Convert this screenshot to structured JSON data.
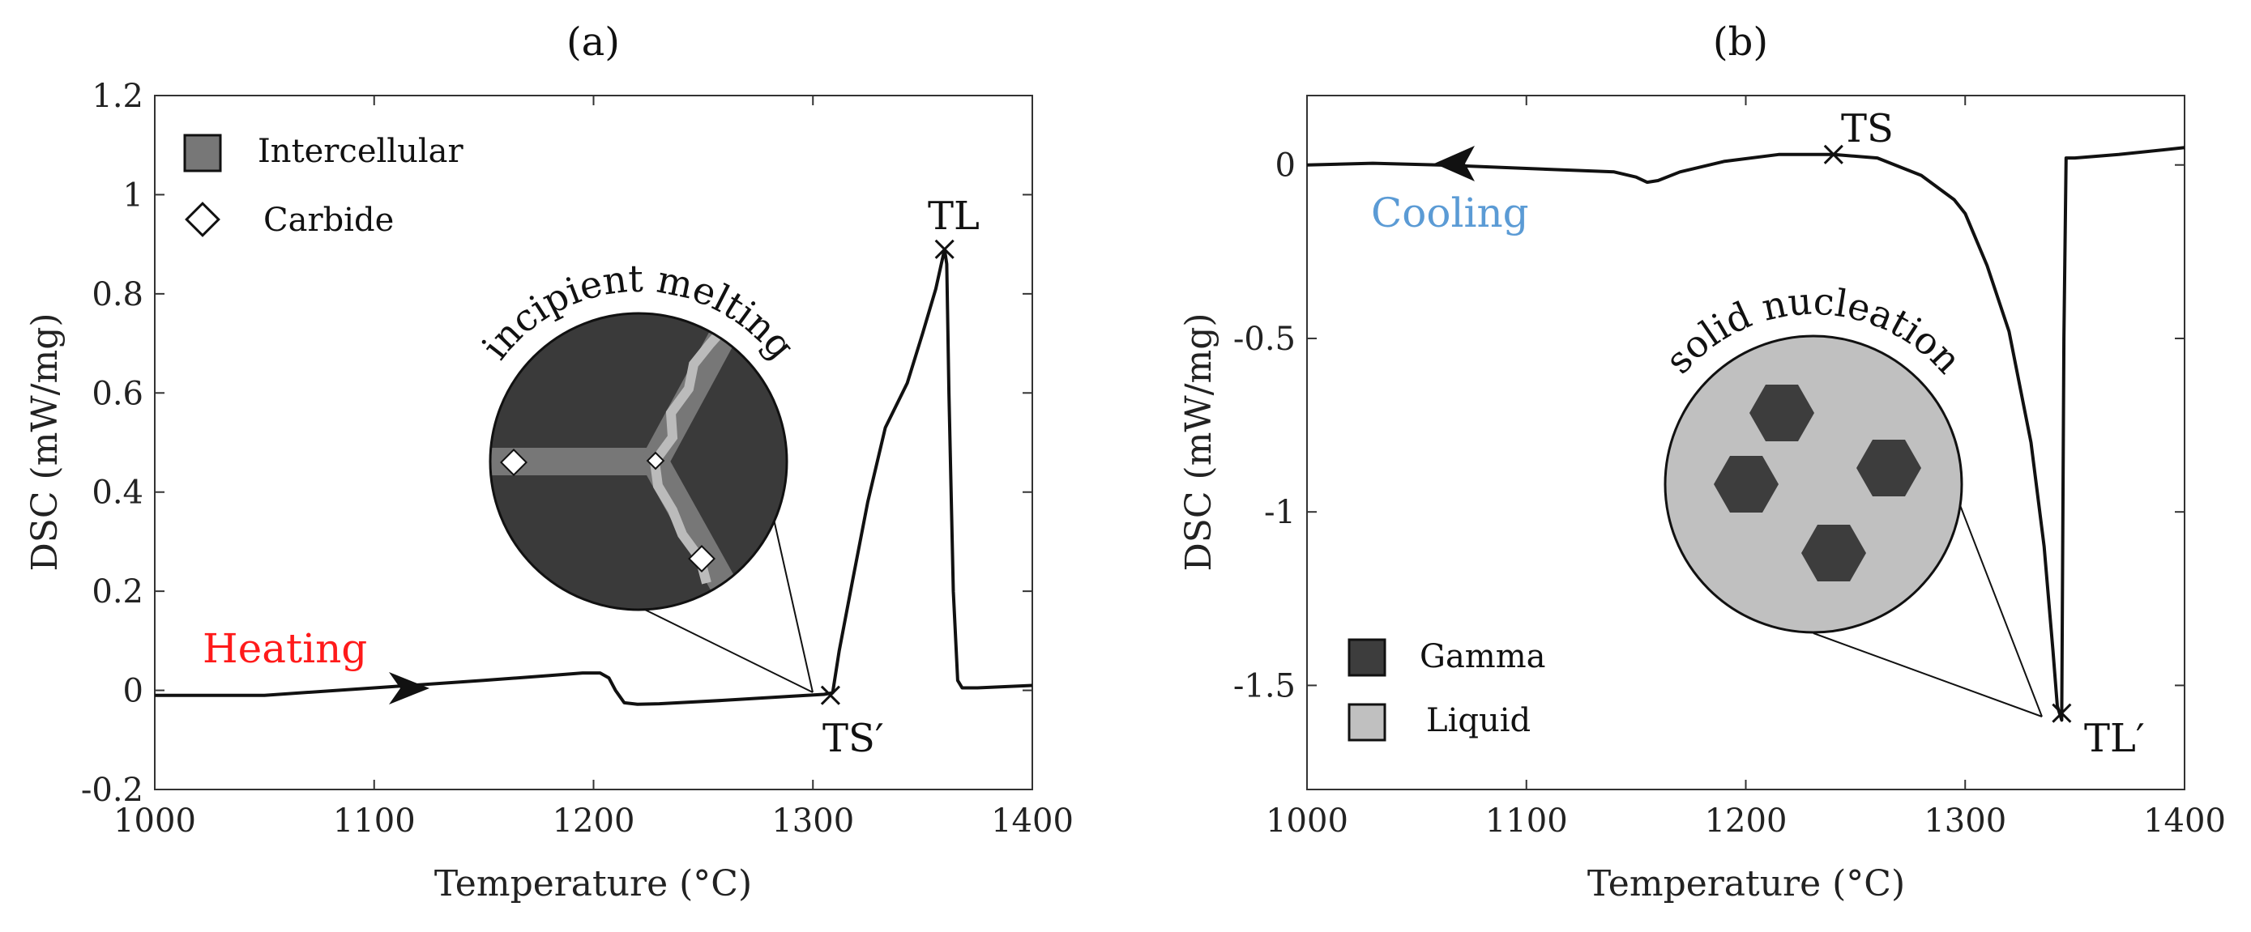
{
  "chart_data": [
    {
      "type": "line",
      "title": "(a)",
      "xlabel": "Temperature (°C)",
      "ylabel": "DSC (mW/mg)",
      "xlim": [
        1000,
        1400
      ],
      "ylim": [
        -0.2,
        1.2
      ],
      "xticks": [
        "1000",
        "1100",
        "1200",
        "1300",
        "1400"
      ],
      "yticks": [
        "-0.2",
        "0",
        "0.2",
        "0.4",
        "0.6",
        "0.8",
        "1",
        "1.2"
      ],
      "series": [
        {
          "name": "Heating",
          "x": [
            1000,
            1050,
            1100,
            1150,
            1180,
            1195,
            1203,
            1207,
            1210,
            1214,
            1220,
            1230,
            1260,
            1290,
            1305,
            1309,
            1312,
            1318,
            1325,
            1333,
            1343,
            1350,
            1356,
            1360,
            1361,
            1362,
            1364,
            1366,
            1368,
            1375,
            1400
          ],
          "y": [
            -0.01,
            -0.01,
            0.005,
            0.02,
            0.03,
            0.035,
            0.035,
            0.025,
            0.0,
            -0.025,
            -0.028,
            -0.027,
            -0.02,
            -0.012,
            -0.008,
            -0.005,
            0.08,
            0.22,
            0.38,
            0.53,
            0.62,
            0.72,
            0.81,
            0.89,
            0.86,
            0.6,
            0.2,
            0.02,
            0.005,
            0.005,
            0.01
          ]
        }
      ],
      "annotations": {
        "heating_label": "Heating",
        "heating_color": "#ff1a1a",
        "peak_label": "TL",
        "peak": [
          1360,
          0.89
        ],
        "onset_label": "TS′",
        "onset": [
          1308,
          -0.01
        ],
        "inset_title": "incipient melting"
      },
      "legend": {
        "position": "top-left",
        "items": [
          {
            "label": "Intercellular",
            "symbol": "square",
            "color": "#777777"
          },
          {
            "label": "Carbide",
            "symbol": "diamond",
            "color": "#ffffff"
          }
        ]
      }
    },
    {
      "type": "line",
      "title": "(b)",
      "xlabel": "Temperature (°C)",
      "ylabel": "DSC (mW/mg)",
      "xlim": [
        1000,
        1400
      ],
      "ylim": [
        -1.8,
        0.2
      ],
      "xticks": [
        "1000",
        "1100",
        "1200",
        "1300",
        "1400"
      ],
      "yticks": [
        "-1.5",
        "-1",
        "-0.5",
        "0"
      ],
      "series": [
        {
          "name": "Cooling",
          "x": [
            1000,
            1030,
            1060,
            1100,
            1140,
            1150,
            1155,
            1160,
            1170,
            1190,
            1215,
            1240,
            1260,
            1280,
            1295,
            1300,
            1310,
            1320,
            1330,
            1336,
            1340,
            1342,
            1344,
            1345,
            1346,
            1350,
            1370,
            1400
          ],
          "y": [
            0.0,
            0.005,
            0.0,
            -0.01,
            -0.02,
            -0.035,
            -0.05,
            -0.045,
            -0.02,
            0.01,
            0.03,
            0.03,
            0.02,
            -0.03,
            -0.1,
            -0.14,
            -0.29,
            -0.48,
            -0.8,
            -1.1,
            -1.4,
            -1.56,
            -1.6,
            -0.5,
            0.02,
            0.02,
            0.03,
            0.05
          ]
        }
      ],
      "annotations": {
        "cooling_label": "Cooling",
        "cooling_color": "#5b9bd5",
        "ts_label": "TS",
        "ts": [
          1240,
          0.03
        ],
        "tl_label": "TL′",
        "tl": [
          1344,
          -1.58
        ],
        "inset_title": "solid nucleation"
      },
      "legend": {
        "position": "bottom-left",
        "items": [
          {
            "label": "Gamma",
            "symbol": "square",
            "color": "#3d3d3d"
          },
          {
            "label": "Liquid",
            "symbol": "square",
            "color": "#c0c0c0"
          }
        ]
      }
    }
  ]
}
